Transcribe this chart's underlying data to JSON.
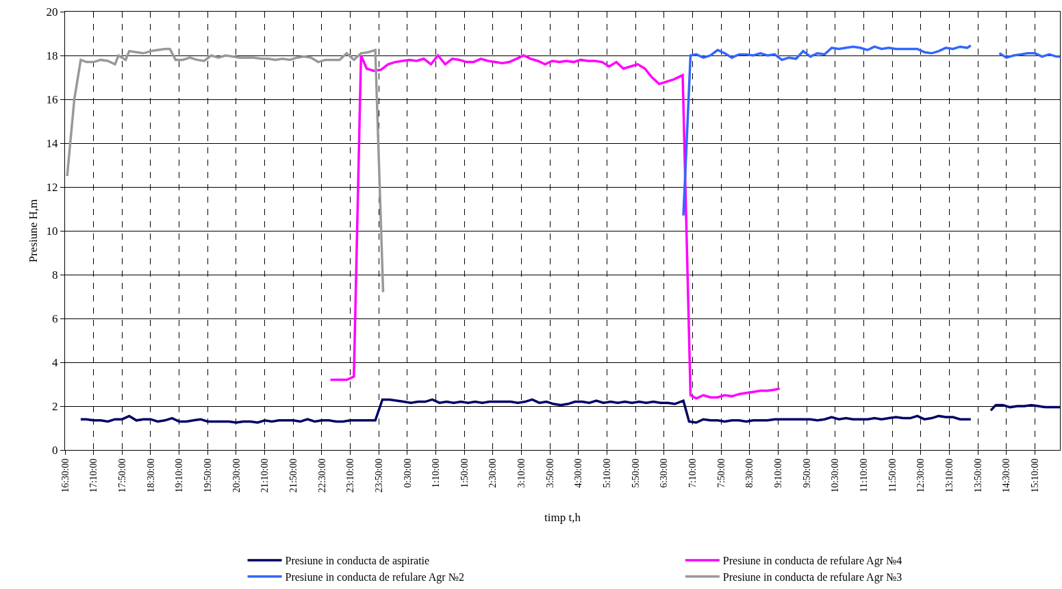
{
  "chart_data": {
    "type": "line",
    "xlabel": "timp t,h",
    "ylabel": "Presiune H,m",
    "xlim": [
      "--01-01T16:30",
      "--01-02T15:45"
    ],
    "ylim": [
      0,
      20
    ],
    "yticks": [
      0,
      2,
      4,
      6,
      8,
      10,
      12,
      14,
      16,
      18,
      20
    ],
    "xticks": [
      {
        "value": "--01-01T16:30",
        "label": "16:30:00"
      },
      {
        "value": "--01-01T17:10",
        "label": "17:10:00"
      },
      {
        "value": "--01-01T17:50",
        "label": "17:50:00"
      },
      {
        "value": "--01-01T18:30",
        "label": "18:30:00"
      },
      {
        "value": "--01-01T19:10",
        "label": "19:10:00"
      },
      {
        "value": "--01-01T19:50",
        "label": "19:50:00"
      },
      {
        "value": "--01-01T20:30",
        "label": "20:30:00"
      },
      {
        "value": "--01-01T21:10",
        "label": "21:10:00"
      },
      {
        "value": "--01-01T21:50",
        "label": "21:50:00"
      },
      {
        "value": "--01-01T22:30",
        "label": "22:30:00"
      },
      {
        "value": "--01-01T23:10",
        "label": "23:10:00"
      },
      {
        "value": "--01-01T23:50",
        "label": "23:50:00"
      },
      {
        "value": "--01-02T00:30",
        "label": "0:30:00"
      },
      {
        "value": "--01-02T01:10",
        "label": "1:10:00"
      },
      {
        "value": "--01-02T01:50",
        "label": "1:50:00"
      },
      {
        "value": "--01-02T02:30",
        "label": "2:30:00"
      },
      {
        "value": "--01-02T03:10",
        "label": "3:10:00"
      },
      {
        "value": "--01-02T03:50",
        "label": "3:50:00"
      },
      {
        "value": "--01-02T04:30",
        "label": "4:30:00"
      },
      {
        "value": "--01-02T05:10",
        "label": "5:10:00"
      },
      {
        "value": "--01-02T05:50",
        "label": "5:50:00"
      },
      {
        "value": "--01-02T06:30",
        "label": "6:30:00"
      },
      {
        "value": "--01-02T07:10",
        "label": "7:10:00"
      },
      {
        "value": "--01-02T07:50",
        "label": "7:50:00"
      },
      {
        "value": "--01-02T08:30",
        "label": "8:30:00"
      },
      {
        "value": "--01-02T09:10",
        "label": "9:10:00"
      },
      {
        "value": "--01-02T09:50",
        "label": "9:50:00"
      },
      {
        "value": "--01-02T10:30",
        "label": "10:30:00"
      },
      {
        "value": "--01-02T11:10",
        "label": "11:10:00"
      },
      {
        "value": "--01-02T11:50",
        "label": "11:50:00"
      },
      {
        "value": "--01-02T12:30",
        "label": "12:30:00"
      },
      {
        "value": "--01-02T13:10",
        "label": "13:10:00"
      },
      {
        "value": "--01-02T13:50",
        "label": "13:50:00"
      },
      {
        "value": "--01-02T14:30",
        "label": "14:30:00"
      },
      {
        "value": "--01-02T15:10",
        "label": "15:10:00"
      }
    ],
    "grid": true,
    "legend": "bottom",
    "marker": "none",
    "line_style": "solid",
    "series": [
      {
        "name": "Presiune in conducta de aspiratie",
        "color": "#000066",
        "x": [
          "--01-01T16:52",
          "--01-01T17:00",
          "--01-01T17:10",
          "--01-01T17:20",
          "--01-01T17:30",
          "--01-01T17:40",
          "--01-01T17:50",
          "--01-01T18:00",
          "--01-01T18:10",
          "--01-01T18:20",
          "--01-01T18:30",
          "--01-01T18:40",
          "--01-01T18:50",
          "--01-01T19:00",
          "--01-01T19:10",
          "--01-01T19:20",
          "--01-01T19:30",
          "--01-01T19:40",
          "--01-01T19:50",
          "--01-01T20:00",
          "--01-01T20:10",
          "--01-01T20:20",
          "--01-01T20:30",
          "--01-01T20:40",
          "--01-01T20:50",
          "--01-01T21:00",
          "--01-01T21:10",
          "--01-01T21:20",
          "--01-01T21:30",
          "--01-01T21:40",
          "--01-01T21:50",
          "--01-01T22:00",
          "--01-01T22:10",
          "--01-01T22:20",
          "--01-01T22:30",
          "--01-01T22:40",
          "--01-01T22:50",
          "--01-01T23:00",
          "--01-01T23:10",
          "--01-01T23:20",
          "--01-01T23:30",
          "--01-01T23:45",
          "--01-01T23:55",
          "--01-02T00:05",
          "--01-02T00:15",
          "--01-02T00:25",
          "--01-02T00:35",
          "--01-02T00:45",
          "--01-02T00:55",
          "--01-02T01:05",
          "--01-02T01:15",
          "--01-02T01:25",
          "--01-02T01:35",
          "--01-02T01:45",
          "--01-02T01:55",
          "--01-02T02:05",
          "--01-02T02:15",
          "--01-02T02:25",
          "--01-02T02:35",
          "--01-02T02:45",
          "--01-02T02:55",
          "--01-02T03:05",
          "--01-02T03:15",
          "--01-02T03:25",
          "--01-02T03:35",
          "--01-02T03:45",
          "--01-02T03:55",
          "--01-02T04:05",
          "--01-02T04:15",
          "--01-02T04:25",
          "--01-02T04:35",
          "--01-02T04:45",
          "--01-02T04:55",
          "--01-02T05:05",
          "--01-02T05:15",
          "--01-02T05:25",
          "--01-02T05:35",
          "--01-02T05:45",
          "--01-02T05:55",
          "--01-02T06:05",
          "--01-02T06:15",
          "--01-02T06:25",
          "--01-02T06:35",
          "--01-02T06:45",
          "--01-02T06:57",
          "--01-02T07:05",
          "--01-02T07:15",
          "--01-02T07:25",
          "--01-02T07:35",
          "--01-02T07:45",
          "--01-02T07:55",
          "--01-02T08:05",
          "--01-02T08:15",
          "--01-02T08:25",
          "--01-02T08:35",
          "--01-02T08:45",
          "--01-02T08:55",
          "--01-02T09:05",
          "--01-02T09:15",
          "--01-02T09:25",
          "--01-02T09:35",
          "--01-02T09:45",
          "--01-02T09:55",
          "--01-02T10:05",
          "--01-02T10:15",
          "--01-02T10:25",
          "--01-02T10:35",
          "--01-02T10:45",
          "--01-02T10:55",
          "--01-02T11:05",
          "--01-02T11:15",
          "--01-02T11:25",
          "--01-02T11:35",
          "--01-02T11:45",
          "--01-02T11:55",
          "--01-02T12:05",
          "--01-02T12:15",
          "--01-02T12:25",
          "--01-02T12:35",
          "--01-02T12:45",
          "--01-02T12:55",
          "--01-02T13:05",
          "--01-02T13:15",
          "--01-02T13:25",
          "--01-02T13:40",
          "--01-02T13:54",
          "--01-02T14:08",
          "--01-02T14:15",
          "--01-02T14:25",
          "--01-02T14:35",
          "--01-02T14:45",
          "--01-02T14:55",
          "--01-02T15:05",
          "--01-02T15:15",
          "--01-02T15:25",
          "--01-02T15:35",
          "--01-02T15:45"
        ],
        "values": [
          1.4,
          1.4,
          1.35,
          1.35,
          1.3,
          1.4,
          1.4,
          1.55,
          1.35,
          1.4,
          1.4,
          1.3,
          1.35,
          1.45,
          1.3,
          1.3,
          1.35,
          1.4,
          1.3,
          1.3,
          1.3,
          1.3,
          1.25,
          1.3,
          1.3,
          1.25,
          1.35,
          1.3,
          1.35,
          1.35,
          1.35,
          1.3,
          1.4,
          1.3,
          1.35,
          1.35,
          1.3,
          1.3,
          1.35,
          1.35,
          1.35,
          1.35,
          2.3,
          2.3,
          2.25,
          2.2,
          2.15,
          2.2,
          2.2,
          2.3,
          2.15,
          2.2,
          2.15,
          2.2,
          2.15,
          2.2,
          2.15,
          2.2,
          2.2,
          2.2,
          2.2,
          2.15,
          2.2,
          2.3,
          2.15,
          2.2,
          2.1,
          2.05,
          2.1,
          2.2,
          2.2,
          2.15,
          2.25,
          2.15,
          2.2,
          2.15,
          2.2,
          2.15,
          2.2,
          2.15,
          2.2,
          2.15,
          2.15,
          2.1,
          2.25,
          1.3,
          1.25,
          1.4,
          1.35,
          1.35,
          1.3,
          1.35,
          1.35,
          1.3,
          1.35,
          1.35,
          1.35,
          1.4,
          1.4,
          1.4,
          1.4,
          1.4,
          1.4,
          1.35,
          1.4,
          1.5,
          1.4,
          1.45,
          1.4,
          1.4,
          1.4,
          1.45,
          1.4,
          1.45,
          1.5,
          1.45,
          1.45,
          1.55,
          1.4,
          1.45,
          1.55,
          1.5,
          1.5,
          1.4,
          1.4,
          null,
          1.8,
          2.05,
          2.05,
          1.95,
          2.0,
          2.0,
          2.05,
          2.0,
          1.95,
          1.95,
          1.95
        ]
      },
      {
        "name": "Presiune in conducta de refulare Agr №4",
        "color": "#ff00ff",
        "x": [
          "--01-01T22:42",
          "--01-01T22:54",
          "--01-01T23:05",
          "--01-01T23:15",
          "--01-01T23:25",
          "--01-01T23:33",
          "--01-01T23:43",
          "--01-01T23:53",
          "--01-02T00:03",
          "--01-02T00:13",
          "--01-02T00:23",
          "--01-02T00:33",
          "--01-02T00:43",
          "--01-02T00:53",
          "--01-02T01:03",
          "--01-02T01:13",
          "--01-02T01:23",
          "--01-02T01:33",
          "--01-02T01:43",
          "--01-02T01:53",
          "--01-02T02:03",
          "--01-02T02:13",
          "--01-02T02:23",
          "--01-02T02:33",
          "--01-02T02:43",
          "--01-02T02:53",
          "--01-02T03:03",
          "--01-02T03:13",
          "--01-02T03:23",
          "--01-02T03:33",
          "--01-02T03:43",
          "--01-02T03:53",
          "--01-02T04:03",
          "--01-02T04:13",
          "--01-02T04:23",
          "--01-02T04:33",
          "--01-02T04:43",
          "--01-02T04:53",
          "--01-02T05:03",
          "--01-02T05:13",
          "--01-02T05:23",
          "--01-02T05:33",
          "--01-02T05:43",
          "--01-02T05:53",
          "--01-02T06:03",
          "--01-02T06:13",
          "--01-02T06:23",
          "--01-02T06:33",
          "--01-02T06:43",
          "--01-02T06:56",
          "--01-02T07:07",
          "--01-02T07:15",
          "--01-02T07:25",
          "--01-02T07:35",
          "--01-02T07:45",
          "--01-02T07:55",
          "--01-02T08:05",
          "--01-02T08:15",
          "--01-02T08:25",
          "--01-02T08:35",
          "--01-02T08:45",
          "--01-02T08:55",
          "--01-02T09:05",
          "--01-02T09:12"
        ],
        "values": [
          3.2,
          3.2,
          3.2,
          3.35,
          18.0,
          17.4,
          17.3,
          17.35,
          17.6,
          17.7,
          17.75,
          17.8,
          17.75,
          17.85,
          17.6,
          18.0,
          17.6,
          17.85,
          17.8,
          17.7,
          17.7,
          17.85,
          17.75,
          17.7,
          17.65,
          17.7,
          17.85,
          18.0,
          17.85,
          17.75,
          17.6,
          17.75,
          17.7,
          17.75,
          17.7,
          17.8,
          17.75,
          17.75,
          17.7,
          17.5,
          17.7,
          17.4,
          17.5,
          17.6,
          17.4,
          17.0,
          16.7,
          16.8,
          16.9,
          17.1,
          2.5,
          2.35,
          2.5,
          2.4,
          2.4,
          2.5,
          2.45,
          2.55,
          2.6,
          2.65,
          2.7,
          2.7,
          2.75,
          2.8
        ]
      },
      {
        "name": "Presiune in conducta de refulare Agr №2",
        "color": "#3366ff",
        "x": [
          "--01-02T06:57",
          "--01-02T07:07",
          "--01-02T07:15",
          "--01-02T07:25",
          "--01-02T07:35",
          "--01-02T07:45",
          "--01-02T07:55",
          "--01-02T08:05",
          "--01-02T08:15",
          "--01-02T08:25",
          "--01-02T08:35",
          "--01-02T08:45",
          "--01-02T08:55",
          "--01-02T09:05",
          "--01-02T09:15",
          "--01-02T09:25",
          "--01-02T09:35",
          "--01-02T09:45",
          "--01-02T09:55",
          "--01-02T10:05",
          "--01-02T10:15",
          "--01-02T10:25",
          "--01-02T10:35",
          "--01-02T10:45",
          "--01-02T10:55",
          "--01-02T11:05",
          "--01-02T11:15",
          "--01-02T11:25",
          "--01-02T11:35",
          "--01-02T11:45",
          "--01-02T11:55",
          "--01-02T12:05",
          "--01-02T12:15",
          "--01-02T12:25",
          "--01-02T12:35",
          "--01-02T12:45",
          "--01-02T12:55",
          "--01-02T13:05",
          "--01-02T13:15",
          "--01-02T13:25",
          "--01-02T13:35",
          "--01-02T13:40",
          "--01-02T14:00",
          "--01-02T14:20",
          "--01-02T14:30",
          "--01-02T14:40",
          "--01-02T14:50",
          "--01-02T15:00",
          "--01-02T15:10",
          "--01-02T15:20",
          "--01-02T15:30",
          "--01-02T15:40",
          "--01-02T15:45"
        ],
        "values": [
          10.7,
          18.0,
          18.05,
          17.9,
          18.0,
          18.25,
          18.1,
          17.9,
          18.05,
          18.05,
          18.0,
          18.1,
          18.0,
          18.05,
          17.8,
          17.9,
          17.85,
          18.2,
          17.95,
          18.1,
          18.05,
          18.35,
          18.3,
          18.35,
          18.4,
          18.35,
          18.25,
          18.4,
          18.3,
          18.35,
          18.3,
          18.3,
          18.3,
          18.3,
          18.15,
          18.1,
          18.2,
          18.35,
          18.3,
          18.4,
          18.35,
          18.45,
          null,
          18.1,
          17.9,
          18.0,
          18.05,
          18.1,
          18.1,
          17.95,
          18.05,
          17.95,
          17.95
        ]
      },
      {
        "name": "Presiune in conducta de refulare Agr №3",
        "color": "#999999",
        "x": [
          "--01-01T16:33",
          "--01-01T16:43",
          "--01-01T16:52",
          "--01-01T17:00",
          "--01-01T17:10",
          "--01-01T17:20",
          "--01-01T17:30",
          "--01-01T17:40",
          "--01-01T17:45",
          "--01-01T17:55",
          "--01-01T18:00",
          "--01-01T18:10",
          "--01-01T18:20",
          "--01-01T18:30",
          "--01-01T18:40",
          "--01-01T18:50",
          "--01-01T18:57",
          "--01-01T19:05",
          "--01-01T19:15",
          "--01-01T19:25",
          "--01-01T19:35",
          "--01-01T19:45",
          "--01-01T19:55",
          "--01-01T20:05",
          "--01-01T20:15",
          "--01-01T20:25",
          "--01-01T20:35",
          "--01-01T20:45",
          "--01-01T20:55",
          "--01-01T21:05",
          "--01-01T21:15",
          "--01-01T21:25",
          "--01-01T21:35",
          "--01-01T21:45",
          "--01-01T21:55",
          "--01-01T22:05",
          "--01-01T22:15",
          "--01-01T22:25",
          "--01-01T22:35",
          "--01-01T22:45",
          "--01-01T22:55",
          "--01-01T23:05",
          "--01-01T23:15",
          "--01-01T23:25",
          "--01-01T23:35",
          "--01-01T23:45",
          "--01-01T23:56"
        ],
        "values": [
          12.5,
          16.0,
          17.8,
          17.7,
          17.7,
          17.8,
          17.75,
          17.6,
          18.0,
          17.8,
          18.2,
          18.15,
          18.1,
          18.2,
          18.25,
          18.3,
          18.3,
          17.8,
          17.8,
          17.9,
          17.8,
          17.75,
          18.0,
          17.9,
          18.0,
          17.95,
          17.9,
          17.9,
          17.9,
          17.85,
          17.85,
          17.8,
          17.85,
          17.8,
          17.9,
          17.95,
          17.9,
          17.7,
          17.8,
          17.8,
          17.8,
          18.1,
          17.8,
          18.1,
          18.15,
          18.25,
          7.2
        ]
      }
    ]
  }
}
